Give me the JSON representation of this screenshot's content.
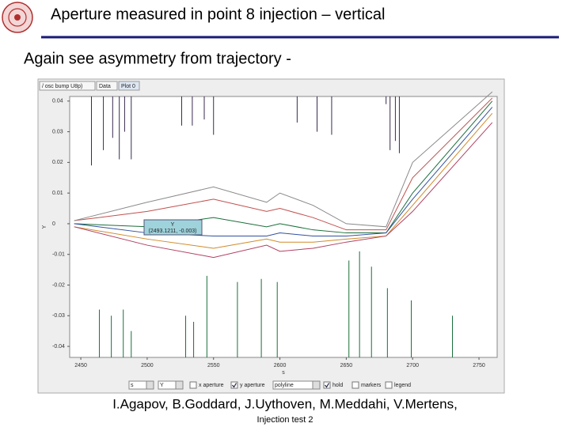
{
  "slide": {
    "title": "Aperture measured in point 8 injection – vertical",
    "subtitle": "Again see asymmetry from trajectory -",
    "authors": "I.Agapov, B.Goddard, J.Uythoven, M.Meddahi, V.Mertens,",
    "footer": "Injection test 2"
  },
  "app": {
    "tabs": [
      "/ osc bump U8p)",
      "Data",
      "Plot 0"
    ],
    "x_select": "s",
    "y_select": "Y",
    "style_select": "polyline",
    "checkboxes": [
      "x aperture",
      "y aperture",
      "hold",
      "markers",
      "legend"
    ],
    "tooltip": [
      "Y",
      "(2493.1211, -0.003)"
    ]
  },
  "chart_data": {
    "type": "line",
    "x_label": "s",
    "y_label": "Y",
    "xlim": [
      2441.6,
      2763.7
    ],
    "xticks": [
      2450,
      2500,
      2550,
      2600,
      2650,
      2700,
      2750
    ],
    "ylim": [
      -0.0436,
      0.0415
    ],
    "yticks": [
      0.04,
      0.03,
      0.02,
      0.01,
      0,
      -0.01,
      -0.02,
      -0.03,
      -0.04
    ],
    "x": [
      2445,
      2500,
      2550,
      2590,
      2600,
      2625,
      2650,
      2680,
      2700,
      2760
    ],
    "series": [
      {
        "color": "#1a6e3a",
        "values": [
          0,
          -0.001,
          0.002,
          -0.001,
          0,
          -0.002,
          -0.003,
          -0.003,
          0.01,
          0.04
        ]
      },
      {
        "color": "#c0504d",
        "values": [
          0.001,
          0.004,
          0.008,
          0.004,
          0.005,
          0.002,
          -0.002,
          -0.002,
          0.015,
          0.041
        ]
      },
      {
        "color": "#8a8a8a",
        "values": [
          0.001,
          0.007,
          0.012,
          0.007,
          0.01,
          0.006,
          0,
          -0.001,
          0.02,
          0.043
        ]
      },
      {
        "color": "#d08a2a",
        "values": [
          -0.001,
          -0.005,
          -0.008,
          -0.005,
          -0.006,
          -0.006,
          -0.005,
          -0.004,
          0.006,
          0.036
        ]
      },
      {
        "color": "#b04060",
        "values": [
          -0.001,
          -0.007,
          -0.011,
          -0.007,
          -0.009,
          -0.008,
          -0.006,
          -0.004,
          0.004,
          0.033
        ]
      },
      {
        "color": "#3050a0",
        "values": [
          0,
          -0.003,
          -0.004,
          -0.004,
          -0.003,
          -0.004,
          -0.004,
          -0.003,
          0.008,
          0.038
        ]
      }
    ],
    "aperture_upper": {
      "color": "#3a2a50",
      "x": [
        2458,
        2467,
        2474,
        2479,
        2483,
        2488,
        2526,
        2534,
        2543,
        2550,
        2613,
        2628,
        2639,
        2680,
        2683,
        2687,
        2690
      ],
      "values": [
        0.019,
        0.024,
        0.028,
        0.021,
        0.03,
        0.021,
        0.032,
        0.032,
        0.034,
        0.029,
        0.033,
        0.03,
        0.029,
        0.039,
        0.024,
        0.027,
        0.023
      ]
    },
    "aperture_lower": {
      "color": "#1a6e3a",
      "x": [
        2464,
        2473,
        2482,
        2488,
        2529,
        2535,
        2545,
        2568,
        2586,
        2598,
        2652,
        2660,
        2669,
        2681,
        2699,
        2730
      ],
      "values": [
        -0.028,
        -0.03,
        -0.028,
        -0.035,
        -0.03,
        -0.032,
        -0.017,
        -0.019,
        -0.018,
        -0.019,
        -0.012,
        -0.009,
        -0.014,
        -0.021,
        -0.025,
        -0.03
      ]
    }
  }
}
